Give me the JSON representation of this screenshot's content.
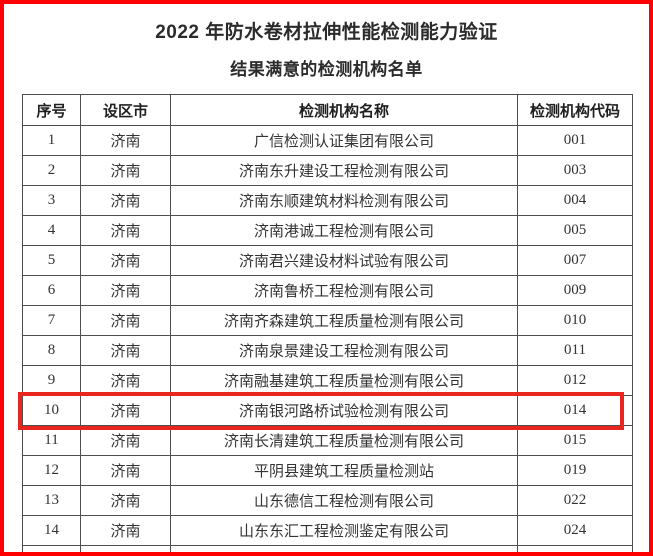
{
  "page": {
    "title": "2022 年防水卷材拉伸性能检测能力验证",
    "subtitle": "结果满意的检测机构名单"
  },
  "table": {
    "columns": [
      "序号",
      "设区市",
      "检测机构名称",
      "检测机构代码"
    ],
    "rows": [
      {
        "seq": "1",
        "city": "济南",
        "name": "广信检测认证集团有限公司",
        "code": "001",
        "highlighted": false
      },
      {
        "seq": "2",
        "city": "济南",
        "name": "济南东升建设工程检测有限公司",
        "code": "003",
        "highlighted": false
      },
      {
        "seq": "3",
        "city": "济南",
        "name": "济南东顺建筑材料检测有限公司",
        "code": "004",
        "highlighted": false
      },
      {
        "seq": "4",
        "city": "济南",
        "name": "济南港诚工程检测有限公司",
        "code": "005",
        "highlighted": false
      },
      {
        "seq": "5",
        "city": "济南",
        "name": "济南君兴建设材料试验有限公司",
        "code": "007",
        "highlighted": false
      },
      {
        "seq": "6",
        "city": "济南",
        "name": "济南鲁桥工程检测有限公司",
        "code": "009",
        "highlighted": false
      },
      {
        "seq": "7",
        "city": "济南",
        "name": "济南齐森建筑工程质量检测有限公司",
        "code": "010",
        "highlighted": false
      },
      {
        "seq": "8",
        "city": "济南",
        "name": "济南泉景建设工程检测有限公司",
        "code": "011",
        "highlighted": false
      },
      {
        "seq": "9",
        "city": "济南",
        "name": "济南融基建筑工程质量检测有限公司",
        "code": "012",
        "highlighted": false
      },
      {
        "seq": "10",
        "city": "济南",
        "name": "济南银河路桥试验检测有限公司",
        "code": "014",
        "highlighted": true
      },
      {
        "seq": "11",
        "city": "济南",
        "name": "济南长清建筑工程质量检测有限公司",
        "code": "015",
        "highlighted": false
      },
      {
        "seq": "12",
        "city": "济南",
        "name": "平阴县建筑工程质量检测站",
        "code": "019",
        "highlighted": false
      },
      {
        "seq": "13",
        "city": "济南",
        "name": "山东德信工程检测有限公司",
        "code": "022",
        "highlighted": false
      },
      {
        "seq": "14",
        "city": "济南",
        "name": "山东东汇工程检测鉴定有限公司",
        "code": "024",
        "highlighted": false
      }
    ]
  },
  "colors": {
    "frame_red": "#ff0000",
    "highlight_red": "#e8251f",
    "grid": "#4f4f4f",
    "text": "#333333"
  }
}
